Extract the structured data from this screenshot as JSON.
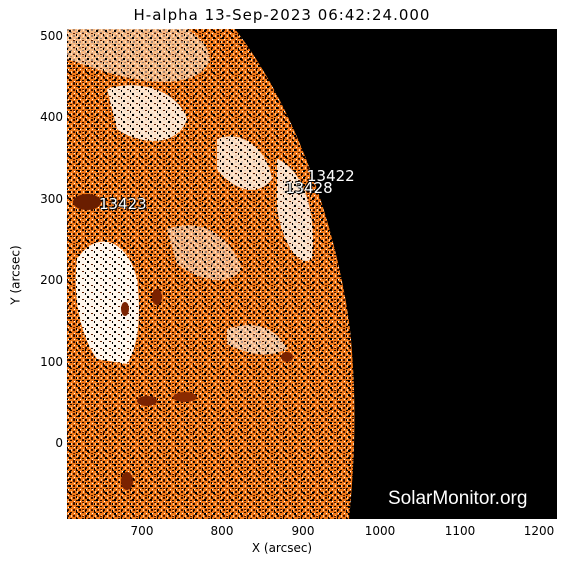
{
  "title": "H-alpha 13-Sep-2023 06:42:24.000",
  "axes": {
    "x_label": "X (arcsec)",
    "y_label": "Y (arcsec)",
    "x_ticks": [
      "700",
      "800",
      "900",
      "1000",
      "1100",
      "1200"
    ],
    "y_ticks": [
      "500",
      "400",
      "300",
      "200",
      "100",
      "0"
    ]
  },
  "regions": [
    {
      "id": "13423",
      "label": "13423"
    },
    {
      "id": "13422",
      "label": "13422"
    },
    {
      "id": "13428",
      "label": "13428"
    }
  ],
  "watermark": "SolarMonitor.org",
  "colors": {
    "disk_orange": "#f07818",
    "dark_brown": "#7a2a00",
    "plage_white": "#fff4e8",
    "space_black": "#000000"
  }
}
